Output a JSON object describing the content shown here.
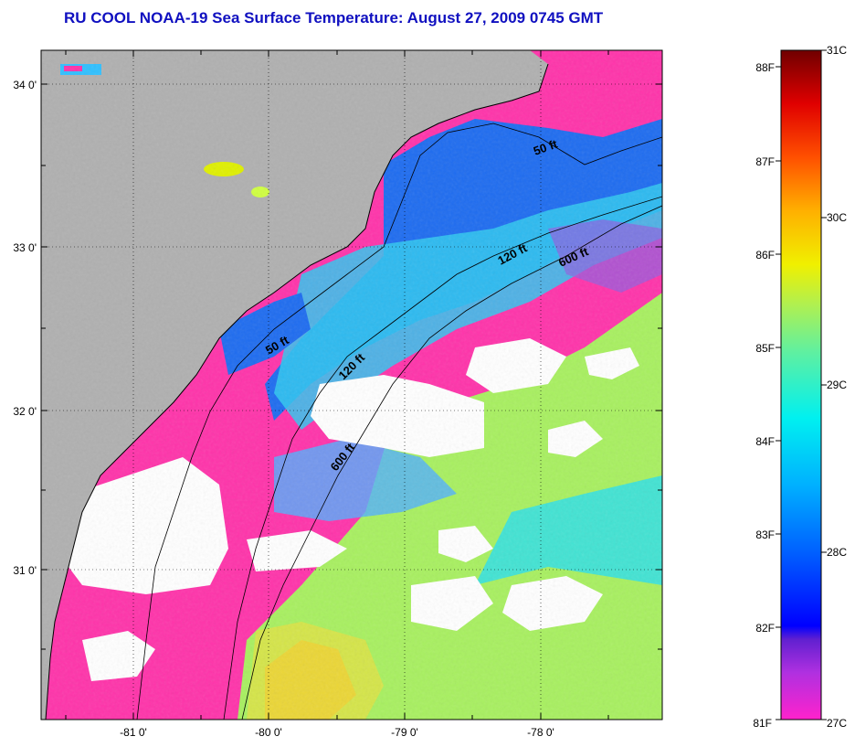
{
  "title": "RU COOL  NOAA-19  Sea Surface Temperature:  August 27, 2009 0745 GMT",
  "map": {
    "lat_labels": [
      "34 0'",
      "33 0'",
      "32 0'",
      "31 0'"
    ],
    "lon_labels": [
      "-81 0'",
      "-80 0'",
      "-79 0'",
      "-78 0'"
    ],
    "contour_labels": [
      "50 ft",
      "120 ft",
      "600 ft",
      "50 ft",
      "120 ft",
      "600 ft"
    ],
    "colors": {
      "land": "#b0b0b0",
      "cloud": "#ffffff",
      "coolest_water": "#ff33aa",
      "cool_water": "#1e6cf0",
      "mid_water": "#30e0e8",
      "warm_water": "#a8f060",
      "warmest_water": "#f0c020"
    }
  },
  "colorbar": {
    "f_labels": [
      "88F",
      "87F",
      "86F",
      "85F",
      "84F",
      "83F",
      "82F",
      "81F"
    ],
    "c_labels": [
      "31C",
      "30C",
      "29C",
      "28C",
      "27C"
    ]
  }
}
